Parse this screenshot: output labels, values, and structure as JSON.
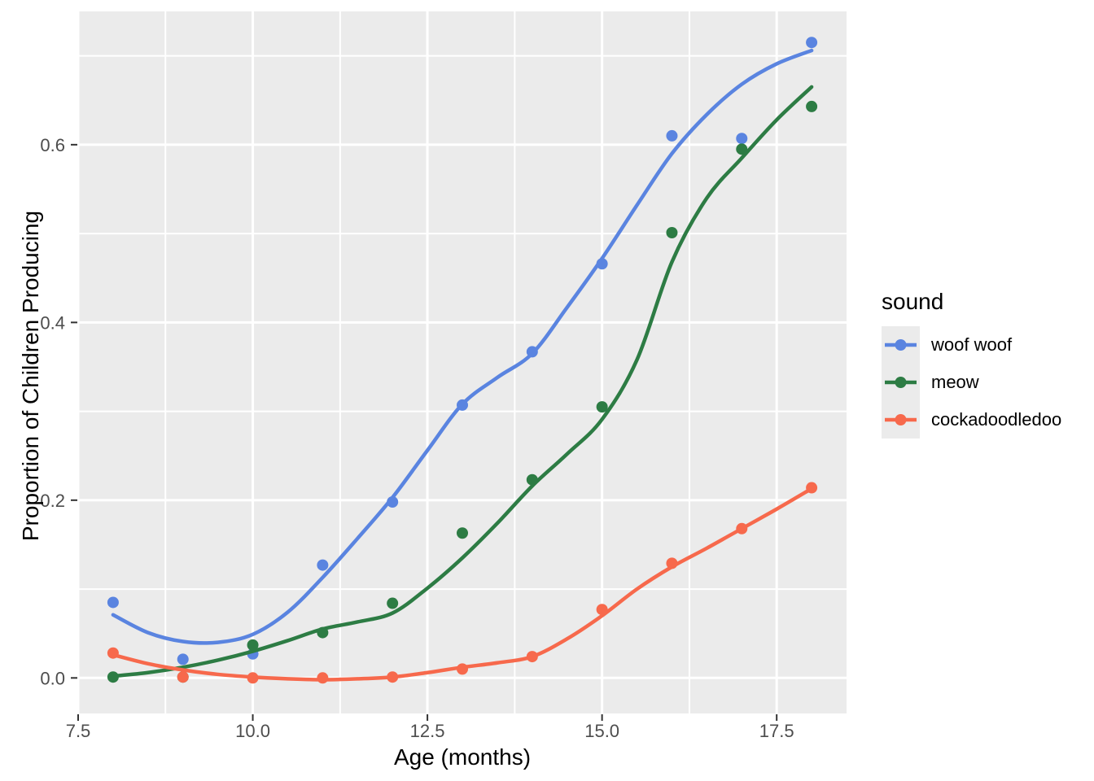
{
  "chart_data": {
    "type": "scatter",
    "subtype": "points-with-loess-smooth",
    "xlabel": "Age (months)",
    "ylabel": "Proportion of Children Producing",
    "xlim": [
      7.5,
      18.5
    ],
    "ylim": [
      -0.04,
      0.75
    ],
    "grid": true,
    "x_major_ticks": [
      7.5,
      10.0,
      12.5,
      15.0,
      17.5
    ],
    "x_tick_labels": [
      "7.5",
      "10.0",
      "12.5",
      "15.0",
      "17.5"
    ],
    "x_minor_ticks": [
      8.75,
      11.25,
      13.75,
      16.25
    ],
    "y_major_ticks": [
      0.0,
      0.2,
      0.4,
      0.6
    ],
    "y_tick_labels": [
      "0.0",
      "0.2",
      "0.4",
      "0.6"
    ],
    "y_minor_ticks": [
      0.1,
      0.3,
      0.5,
      0.7
    ],
    "legend": {
      "title": "sound",
      "position": "right",
      "entries": [
        "woof woof",
        "meow",
        "cockadoodledoo"
      ]
    },
    "colors": {
      "panel_background": "#EBEBEB",
      "grid": "#FFFFFF",
      "tick_label": "#4D4D4D",
      "tick_mark": "#333333",
      "axis_title": "#000000",
      "legend_key_background": "#EBEBEB"
    },
    "series": [
      {
        "name": "woof woof",
        "color": "#5A84E0",
        "x": [
          8,
          9,
          10,
          11,
          12,
          13,
          14,
          15,
          16,
          17,
          18
        ],
        "y": [
          0.085,
          0.021,
          0.027,
          0.127,
          0.198,
          0.307,
          0.367,
          0.466,
          0.61,
          0.607,
          0.715
        ],
        "smooth_fit": {
          "x": [
            8,
            8.5,
            9,
            9.5,
            10,
            10.5,
            11,
            11.5,
            12,
            12.5,
            13,
            13.5,
            14,
            14.5,
            15,
            15.5,
            16,
            16.5,
            17,
            17.5,
            18
          ],
          "y": [
            0.071,
            0.051,
            0.041,
            0.04,
            0.049,
            0.074,
            0.113,
            0.157,
            0.203,
            0.256,
            0.308,
            0.338,
            0.365,
            0.417,
            0.472,
            0.532,
            0.59,
            0.634,
            0.668,
            0.691,
            0.706
          ]
        }
      },
      {
        "name": "meow",
        "color": "#2D7C44",
        "x": [
          8,
          9,
          10,
          11,
          12,
          13,
          14,
          15,
          16,
          17,
          18
        ],
        "y": [
          0.001,
          0.001,
          0.037,
          0.051,
          0.084,
          0.163,
          0.223,
          0.305,
          0.501,
          0.595,
          0.643
        ],
        "smooth_fit": {
          "x": [
            8,
            8.5,
            9,
            9.5,
            10,
            10.5,
            11,
            11.5,
            12,
            12.5,
            13,
            13.5,
            14,
            14.5,
            15,
            15.5,
            16,
            16.5,
            17,
            17.5,
            18
          ],
          "y": [
            0.002,
            0.006,
            0.012,
            0.02,
            0.03,
            0.042,
            0.055,
            0.063,
            0.073,
            0.101,
            0.135,
            0.174,
            0.216,
            0.252,
            0.291,
            0.358,
            0.468,
            0.54,
            0.585,
            0.628,
            0.665
          ]
        }
      },
      {
        "name": "cockadoodledoo",
        "color": "#F7694C",
        "x": [
          8,
          9,
          10,
          11,
          12,
          13,
          14,
          15,
          16,
          17,
          18
        ],
        "y": [
          0.028,
          0.001,
          0.0,
          0.0,
          0.001,
          0.01,
          0.024,
          0.077,
          0.129,
          0.168,
          0.214
        ],
        "smooth_fit": {
          "x": [
            8,
            8.5,
            9,
            9.5,
            10,
            10.5,
            11,
            11.5,
            12,
            12.5,
            13,
            13.5,
            14,
            14.5,
            15,
            15.5,
            16,
            16.5,
            17,
            17.5,
            18
          ],
          "y": [
            0.026,
            0.016,
            0.009,
            0.004,
            0.001,
            -0.001,
            -0.002,
            -0.001,
            0.001,
            0.006,
            0.012,
            0.017,
            0.024,
            0.044,
            0.07,
            0.1,
            0.125,
            0.146,
            0.168,
            0.19,
            0.213
          ]
        }
      }
    ]
  }
}
